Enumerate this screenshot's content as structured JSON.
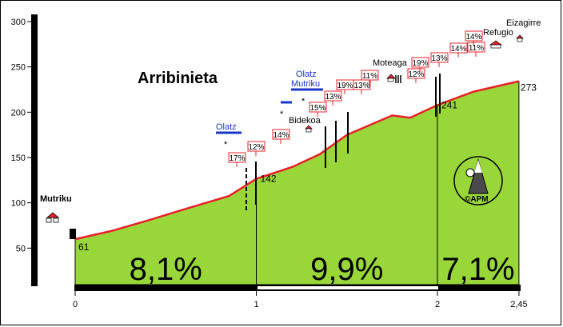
{
  "chart_data": {
    "type": "area",
    "title": "Arribinieta",
    "x_ticks": [
      "0",
      "1",
      "2",
      "2,45"
    ],
    "y_ticks": [
      "300",
      "250",
      "200",
      "150",
      "100",
      "50"
    ],
    "ylim": [
      0,
      300
    ],
    "xlim": [
      0,
      2.45
    ],
    "profile": [
      {
        "x": 0.0,
        "y": 61
      },
      {
        "x": 0.2,
        "y": 72
      },
      {
        "x": 0.4,
        "y": 86
      },
      {
        "x": 0.6,
        "y": 101
      },
      {
        "x": 0.85,
        "y": 119
      },
      {
        "x": 1.0,
        "y": 142
      },
      {
        "x": 1.2,
        "y": 158
      },
      {
        "x": 1.35,
        "y": 175
      },
      {
        "x": 1.5,
        "y": 201
      },
      {
        "x": 1.75,
        "y": 227
      },
      {
        "x": 1.85,
        "y": 224
      },
      {
        "x": 2.0,
        "y": 241
      },
      {
        "x": 2.2,
        "y": 259
      },
      {
        "x": 2.45,
        "y": 273
      }
    ],
    "altitude_labels": [
      {
        "x": 0.0,
        "y": 61,
        "text": "61"
      },
      {
        "x": 1.0,
        "y": 142,
        "text": "142"
      },
      {
        "x": 2.0,
        "y": 241,
        "text": "241"
      },
      {
        "x": 2.45,
        "y": 273,
        "text": "273"
      }
    ],
    "segments": [
      {
        "from": 0,
        "to": 1,
        "grade": "8,1%"
      },
      {
        "from": 1,
        "to": 2,
        "grade": "9,9%"
      },
      {
        "from": 2,
        "to": 2.45,
        "grade": "7,1%"
      }
    ],
    "grade_labels": [
      {
        "x": 0.89,
        "text": "17%"
      },
      {
        "x": 1.0,
        "text": "12%"
      },
      {
        "x": 1.14,
        "text": "14%"
      },
      {
        "x": 1.33,
        "text": "15%"
      },
      {
        "x": 1.4,
        "text": "13%"
      },
      {
        "x": 1.48,
        "text": "19%"
      },
      {
        "x": 1.58,
        "text": "13%"
      },
      {
        "x": 1.7,
        "text": "11%"
      },
      {
        "x": 1.85,
        "text": "12%"
      },
      {
        "x": 1.9,
        "text": "19%"
      },
      {
        "x": 2.0,
        "text": "13%"
      },
      {
        "x": 2.1,
        "text": "14%"
      },
      {
        "x": 2.2,
        "text": "11%"
      },
      {
        "x": 2.2,
        "text": "14%"
      }
    ],
    "places": [
      {
        "name": "Mutriku"
      },
      {
        "name": "Bidekoa"
      },
      {
        "name": "Moteaga"
      },
      {
        "name": "Refugio"
      },
      {
        "name": "Eizagirre"
      }
    ],
    "directions": [
      {
        "text": "Olatz"
      },
      {
        "text": "Olatz"
      },
      {
        "text": "Mutriku"
      }
    ],
    "logo_text": "©APM",
    "colors": {
      "fill": "#99d63a",
      "road": "#e8202a",
      "sign": "#1a35c8"
    }
  }
}
